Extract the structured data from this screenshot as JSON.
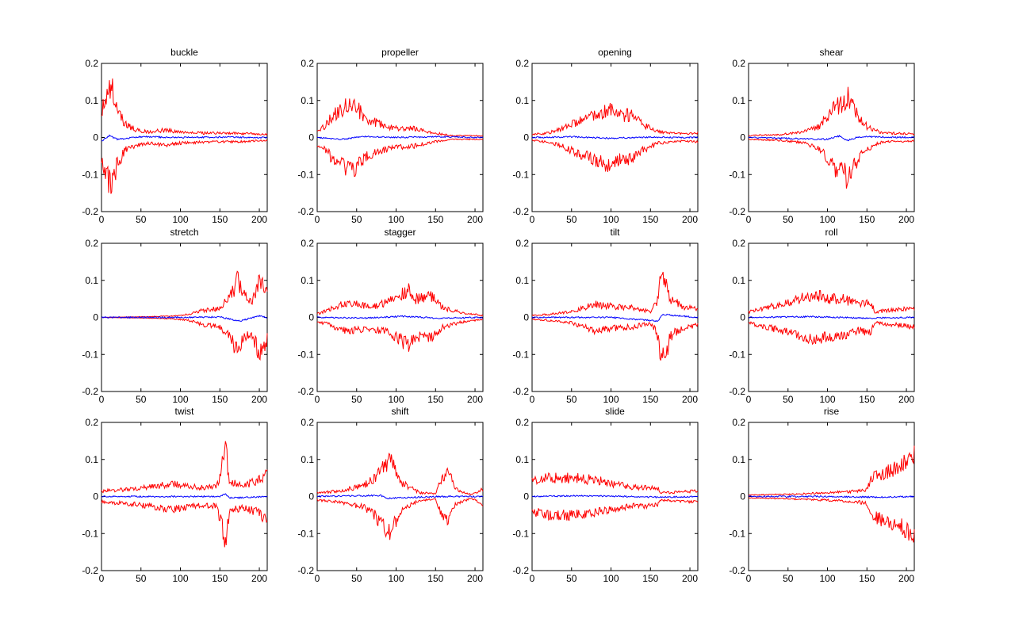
{
  "figure": {
    "background": "#ffffff",
    "layout": {
      "rows": 3,
      "cols": 4
    }
  },
  "colors": {
    "envelope": "#ff0000",
    "mean": "#0000ff",
    "axis": "#000000"
  },
  "chart_data": [
    {
      "type": "line",
      "title": "buckle",
      "xlim": [
        0,
        210
      ],
      "ylim": [
        -0.2,
        0.2
      ],
      "xticks": [
        0,
        50,
        100,
        150,
        200
      ],
      "yticks": [
        -0.2,
        -0.1,
        0,
        0.1,
        0.2
      ],
      "xticklabels": [
        "0",
        "50",
        "100",
        "150",
        "200"
      ],
      "yticklabels": [
        "-0.2",
        "-0.1",
        "0",
        "0.1",
        "0.2"
      ],
      "envelope": [
        [
          0,
          0.07
        ],
        [
          5,
          0.1
        ],
        [
          10,
          0.12
        ],
        [
          14,
          0.13
        ],
        [
          20,
          0.07
        ],
        [
          30,
          0.035
        ],
        [
          45,
          0.02
        ],
        [
          60,
          0.015
        ],
        [
          80,
          0.02
        ],
        [
          100,
          0.015
        ],
        [
          130,
          0.012
        ],
        [
          160,
          0.012
        ],
        [
          190,
          0.01
        ],
        [
          210,
          0.008
        ]
      ],
      "mean": [
        [
          0,
          -0.01
        ],
        [
          10,
          0.005
        ],
        [
          20,
          -0.005
        ],
        [
          50,
          0.002
        ],
        [
          100,
          0
        ],
        [
          150,
          0.001
        ],
        [
          210,
          0
        ]
      ]
    },
    {
      "type": "line",
      "title": "propeller",
      "xlim": [
        0,
        210
      ],
      "ylim": [
        -0.2,
        0.2
      ],
      "xticks": [
        0,
        50,
        100,
        150,
        200
      ],
      "yticks": [
        -0.2,
        -0.1,
        0,
        0.1,
        0.2
      ],
      "xticklabels": [
        "0",
        "50",
        "100",
        "150",
        "200"
      ],
      "yticklabels": [
        "-0.2",
        "-0.1",
        "0",
        "0.1",
        "0.2"
      ],
      "envelope": [
        [
          0,
          0.02
        ],
        [
          10,
          0.03
        ],
        [
          20,
          0.06
        ],
        [
          30,
          0.075
        ],
        [
          40,
          0.085
        ],
        [
          50,
          0.08
        ],
        [
          60,
          0.055
        ],
        [
          80,
          0.035
        ],
        [
          100,
          0.025
        ],
        [
          120,
          0.025
        ],
        [
          140,
          0.015
        ],
        [
          170,
          0.005
        ],
        [
          210,
          0.005
        ]
      ],
      "mean": [
        [
          0,
          0
        ],
        [
          30,
          -0.005
        ],
        [
          60,
          0.003
        ],
        [
          100,
          0
        ],
        [
          150,
          0.002
        ],
        [
          210,
          0
        ]
      ]
    },
    {
      "type": "line",
      "title": "opening",
      "xlim": [
        0,
        210
      ],
      "ylim": [
        -0.2,
        0.2
      ],
      "xticks": [
        0,
        50,
        100,
        150,
        200
      ],
      "yticks": [
        -0.2,
        -0.1,
        0,
        0.1,
        0.2
      ],
      "xticklabels": [
        "0",
        "50",
        "100",
        "150",
        "200"
      ],
      "yticklabels": [
        "-0.2",
        "-0.1",
        "0",
        "0.1",
        "0.2"
      ],
      "envelope": [
        [
          0,
          0.008
        ],
        [
          20,
          0.012
        ],
        [
          40,
          0.025
        ],
        [
          60,
          0.045
        ],
        [
          80,
          0.06
        ],
        [
          95,
          0.075
        ],
        [
          100,
          0.08
        ],
        [
          110,
          0.06
        ],
        [
          125,
          0.06
        ],
        [
          140,
          0.035
        ],
        [
          160,
          0.015
        ],
        [
          190,
          0.01
        ],
        [
          210,
          0.012
        ]
      ],
      "mean": [
        [
          0,
          0
        ],
        [
          50,
          0.002
        ],
        [
          100,
          -0.002
        ],
        [
          150,
          0.001
        ],
        [
          210,
          0
        ]
      ]
    },
    {
      "type": "line",
      "title": "shear",
      "xlim": [
        0,
        210
      ],
      "ylim": [
        -0.2,
        0.2
      ],
      "xticks": [
        0,
        50,
        100,
        150,
        200
      ],
      "yticks": [
        -0.2,
        -0.1,
        0,
        0.1,
        0.2
      ],
      "xticklabels": [
        "0",
        "50",
        "100",
        "150",
        "200"
      ],
      "yticklabels": [
        "-0.2",
        "-0.1",
        "0",
        "0.1",
        "0.2"
      ],
      "envelope": [
        [
          0,
          0.005
        ],
        [
          40,
          0.008
        ],
        [
          70,
          0.015
        ],
        [
          90,
          0.03
        ],
        [
          100,
          0.06
        ],
        [
          110,
          0.085
        ],
        [
          120,
          0.09
        ],
        [
          125,
          0.11
        ],
        [
          135,
          0.07
        ],
        [
          150,
          0.03
        ],
        [
          170,
          0.012
        ],
        [
          210,
          0.01
        ]
      ],
      "mean": [
        [
          0,
          0
        ],
        [
          100,
          -0.005
        ],
        [
          115,
          0.004
        ],
        [
          125,
          -0.008
        ],
        [
          140,
          0.002
        ],
        [
          210,
          0
        ]
      ]
    },
    {
      "type": "line",
      "title": "stretch",
      "xlim": [
        0,
        210
      ],
      "ylim": [
        -0.2,
        0.2
      ],
      "xticks": [
        0,
        50,
        100,
        150,
        200
      ],
      "yticks": [
        -0.2,
        -0.1,
        0,
        0.1,
        0.2
      ],
      "xticklabels": [
        "0",
        "50",
        "100",
        "150",
        "200"
      ],
      "yticklabels": [
        "-0.2",
        "-0.1",
        "0",
        "0.1",
        "0.2"
      ],
      "envelope": [
        [
          0,
          0
        ],
        [
          30,
          0.001
        ],
        [
          60,
          0.002
        ],
        [
          90,
          0.004
        ],
        [
          110,
          0.008
        ],
        [
          130,
          0.02
        ],
        [
          150,
          0.025
        ],
        [
          165,
          0.06
        ],
        [
          172,
          0.1
        ],
        [
          180,
          0.06
        ],
        [
          190,
          0.04
        ],
        [
          200,
          0.1
        ],
        [
          205,
          0.08
        ],
        [
          210,
          0.06
        ]
      ],
      "mean": [
        [
          0,
          0
        ],
        [
          100,
          0
        ],
        [
          150,
          0.001
        ],
        [
          175,
          -0.01
        ],
        [
          200,
          0.005
        ],
        [
          210,
          0
        ]
      ]
    },
    {
      "type": "line",
      "title": "stagger",
      "xlim": [
        0,
        210
      ],
      "ylim": [
        -0.2,
        0.2
      ],
      "xticks": [
        0,
        50,
        100,
        150,
        200
      ],
      "yticks": [
        -0.2,
        -0.1,
        0,
        0.1,
        0.2
      ],
      "xticklabels": [
        "0",
        "50",
        "100",
        "150",
        "200"
      ],
      "yticklabels": [
        "-0.2",
        "-0.1",
        "0",
        "0.1",
        "0.2"
      ],
      "envelope": [
        [
          0,
          0.01
        ],
        [
          15,
          0.02
        ],
        [
          30,
          0.035
        ],
        [
          50,
          0.035
        ],
        [
          70,
          0.03
        ],
        [
          90,
          0.04
        ],
        [
          105,
          0.06
        ],
        [
          115,
          0.075
        ],
        [
          125,
          0.05
        ],
        [
          145,
          0.055
        ],
        [
          160,
          0.025
        ],
        [
          185,
          0.012
        ],
        [
          210,
          0.005
        ]
      ],
      "mean": [
        [
          0,
          0
        ],
        [
          60,
          -0.002
        ],
        [
          110,
          0.003
        ],
        [
          150,
          -0.002
        ],
        [
          210,
          0
        ]
      ]
    },
    {
      "type": "line",
      "title": "tilt",
      "xlim": [
        0,
        210
      ],
      "ylim": [
        -0.2,
        0.2
      ],
      "xticks": [
        0,
        50,
        100,
        150,
        200
      ],
      "yticks": [
        -0.2,
        -0.1,
        0,
        0.1,
        0.2
      ],
      "xticklabels": [
        "0",
        "50",
        "100",
        "150",
        "200"
      ],
      "yticklabels": [
        "-0.2",
        "-0.1",
        "0",
        "0.1",
        "0.2"
      ],
      "envelope": [
        [
          0,
          0.005
        ],
        [
          20,
          0.008
        ],
        [
          50,
          0.015
        ],
        [
          80,
          0.035
        ],
        [
          100,
          0.03
        ],
        [
          130,
          0.025
        ],
        [
          150,
          0.015
        ],
        [
          158,
          0.04
        ],
        [
          163,
          0.1
        ],
        [
          170,
          0.1
        ],
        [
          175,
          0.05
        ],
        [
          190,
          0.03
        ],
        [
          205,
          0.025
        ],
        [
          210,
          0.02
        ]
      ],
      "mean": [
        [
          0,
          0
        ],
        [
          100,
          0
        ],
        [
          160,
          -0.01
        ],
        [
          165,
          0.008
        ],
        [
          210,
          0
        ]
      ]
    },
    {
      "type": "line",
      "title": "roll",
      "xlim": [
        0,
        210
      ],
      "ylim": [
        -0.2,
        0.2
      ],
      "xticks": [
        0,
        50,
        100,
        150,
        200
      ],
      "yticks": [
        -0.2,
        -0.1,
        0,
        0.1,
        0.2
      ],
      "xticklabels": [
        "0",
        "50",
        "100",
        "150",
        "200"
      ],
      "yticklabels": [
        "-0.2",
        "-0.1",
        "0",
        "0.1",
        "0.2"
      ],
      "envelope": [
        [
          0,
          0.015
        ],
        [
          20,
          0.025
        ],
        [
          50,
          0.04
        ],
        [
          70,
          0.055
        ],
        [
          85,
          0.065
        ],
        [
          100,
          0.05
        ],
        [
          120,
          0.05
        ],
        [
          140,
          0.035
        ],
        [
          155,
          0.04
        ],
        [
          160,
          0.015
        ],
        [
          185,
          0.02
        ],
        [
          210,
          0.025
        ]
      ],
      "mean": [
        [
          0,
          0
        ],
        [
          80,
          0.002
        ],
        [
          150,
          -0.002
        ],
        [
          210,
          0
        ]
      ]
    },
    {
      "type": "line",
      "title": "twist",
      "xlim": [
        0,
        210
      ],
      "ylim": [
        -0.2,
        0.2
      ],
      "xticks": [
        0,
        50,
        100,
        150,
        200
      ],
      "yticks": [
        -0.2,
        -0.1,
        0,
        0.1,
        0.2
      ],
      "xticklabels": [
        "0",
        "50",
        "100",
        "150",
        "200"
      ],
      "yticklabels": [
        "-0.2",
        "-0.1",
        "0",
        "0.1",
        "0.2"
      ],
      "envelope": [
        [
          0,
          0.015
        ],
        [
          40,
          0.02
        ],
        [
          90,
          0.035
        ],
        [
          120,
          0.025
        ],
        [
          145,
          0.025
        ],
        [
          152,
          0.07
        ],
        [
          157,
          0.14
        ],
        [
          162,
          0.04
        ],
        [
          180,
          0.03
        ],
        [
          200,
          0.045
        ],
        [
          210,
          0.07
        ]
      ],
      "mean": [
        [
          0,
          0
        ],
        [
          150,
          0
        ],
        [
          157,
          0.008
        ],
        [
          162,
          -0.004
        ],
        [
          210,
          0
        ]
      ]
    },
    {
      "type": "line",
      "title": "shift",
      "xlim": [
        0,
        210
      ],
      "ylim": [
        -0.2,
        0.2
      ],
      "xticks": [
        0,
        50,
        100,
        150,
        200
      ],
      "yticks": [
        -0.2,
        -0.1,
        0,
        0.1,
        0.2
      ],
      "xticklabels": [
        "0",
        "50",
        "100",
        "150",
        "200"
      ],
      "yticklabels": [
        "-0.2",
        "-0.1",
        "0",
        "0.1",
        "0.2"
      ],
      "envelope": [
        [
          0,
          0.01
        ],
        [
          30,
          0.015
        ],
        [
          60,
          0.03
        ],
        [
          75,
          0.055
        ],
        [
          85,
          0.09
        ],
        [
          95,
          0.09
        ],
        [
          105,
          0.04
        ],
        [
          130,
          0.01
        ],
        [
          150,
          0.008
        ],
        [
          160,
          0.06
        ],
        [
          168,
          0.06
        ],
        [
          175,
          0.02
        ],
        [
          195,
          0.005
        ],
        [
          210,
          0.02
        ]
      ],
      "mean": [
        [
          0,
          0
        ],
        [
          80,
          0.003
        ],
        [
          90,
          -0.005
        ],
        [
          150,
          0
        ],
        [
          210,
          0
        ]
      ]
    },
    {
      "type": "line",
      "title": "slide",
      "xlim": [
        0,
        210
      ],
      "ylim": [
        -0.2,
        0.2
      ],
      "xticks": [
        0,
        50,
        100,
        150,
        200
      ],
      "yticks": [
        -0.2,
        -0.1,
        0,
        0.1,
        0.2
      ],
      "xticklabels": [
        "0",
        "50",
        "100",
        "150",
        "200"
      ],
      "yticklabels": [
        "-0.2",
        "-0.1",
        "0",
        "0.1",
        "0.2"
      ],
      "envelope": [
        [
          0,
          0.04
        ],
        [
          20,
          0.05
        ],
        [
          50,
          0.05
        ],
        [
          80,
          0.045
        ],
        [
          100,
          0.035
        ],
        [
          130,
          0.025
        ],
        [
          150,
          0.025
        ],
        [
          160,
          0.02
        ],
        [
          162,
          0.01
        ],
        [
          185,
          0.012
        ],
        [
          210,
          0.015
        ]
      ],
      "mean": [
        [
          0,
          0
        ],
        [
          60,
          0.002
        ],
        [
          120,
          0
        ],
        [
          160,
          -0.002
        ],
        [
          210,
          0
        ]
      ]
    },
    {
      "type": "line",
      "title": "rise",
      "xlim": [
        0,
        210
      ],
      "ylim": [
        -0.2,
        0.2
      ],
      "xticks": [
        0,
        50,
        100,
        150,
        200
      ],
      "yticks": [
        -0.2,
        -0.1,
        0,
        0.1,
        0.2
      ],
      "xticklabels": [
        "0",
        "50",
        "100",
        "150",
        "200"
      ],
      "yticklabels": [
        "-0.2",
        "-0.1",
        "0",
        "0.1",
        "0.2"
      ],
      "envelope": [
        [
          0,
          0.004
        ],
        [
          50,
          0.006
        ],
        [
          100,
          0.01
        ],
        [
          140,
          0.015
        ],
        [
          150,
          0.02
        ],
        [
          156,
          0.05
        ],
        [
          165,
          0.06
        ],
        [
          180,
          0.07
        ],
        [
          195,
          0.085
        ],
        [
          205,
          0.1
        ],
        [
          210,
          0.11
        ]
      ],
      "mean": [
        [
          0,
          0
        ],
        [
          100,
          0
        ],
        [
          160,
          -0.002
        ],
        [
          210,
          0
        ]
      ]
    }
  ]
}
